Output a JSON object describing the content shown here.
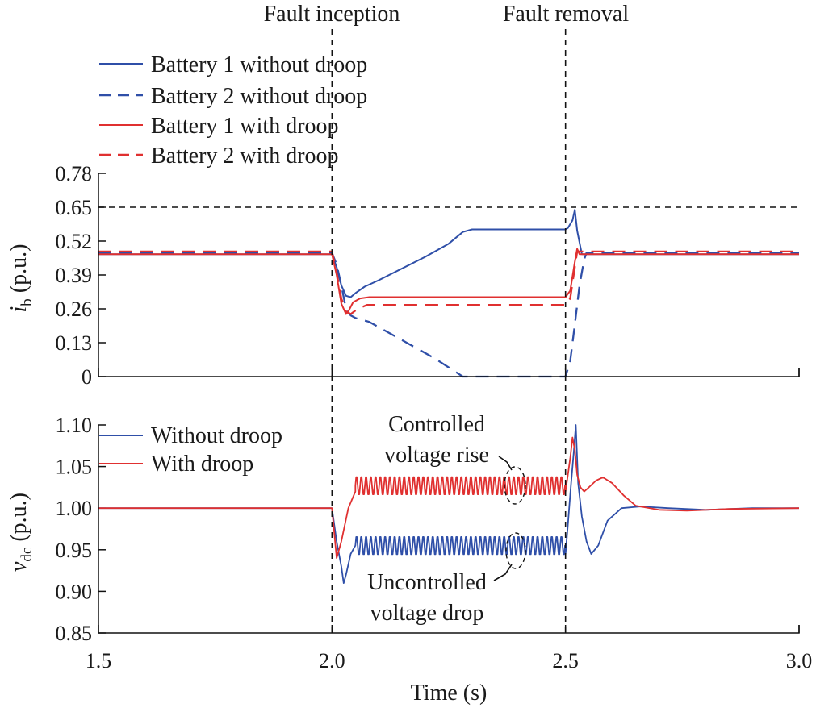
{
  "chart_data": [
    {
      "type": "line",
      "ylabel_main": "i",
      "ylabel_sub": "b",
      "ylabel_unit": " (p.u.)",
      "xlim": [
        1.5,
        3.0
      ],
      "ylim": [
        0,
        0.78
      ],
      "yticks": [
        "0",
        "0.13",
        "0.26",
        "0.39",
        "0.52",
        "0.65",
        "0.78"
      ],
      "reference_line_y": 0.65,
      "legend": [
        "Battery 1 without droop",
        "Battery 2 without droop",
        "Battery 1 with droop",
        "Battery 2 with droop"
      ],
      "legend_location": "top-left",
      "series": [
        {
          "name": "Battery 1 without droop",
          "color": "#2f4fa8",
          "dash": false,
          "x": [
            1.5,
            2.0,
            2.01,
            2.02,
            2.03,
            2.04,
            2.05,
            2.07,
            2.1,
            2.2,
            2.25,
            2.28,
            2.3,
            2.4,
            2.5,
            2.505,
            2.515,
            2.52,
            2.525,
            2.535,
            2.55,
            3.0
          ],
          "y": [
            0.47,
            0.47,
            0.42,
            0.35,
            0.31,
            0.305,
            0.32,
            0.345,
            0.37,
            0.46,
            0.51,
            0.555,
            0.565,
            0.565,
            0.565,
            0.57,
            0.6,
            0.64,
            0.56,
            0.47,
            0.47,
            0.47
          ]
        },
        {
          "name": "Battery 2 without droop",
          "color": "#2f4fa8",
          "dash": true,
          "x": [
            1.5,
            2.0,
            2.01,
            2.02,
            2.03,
            2.04,
            2.05,
            2.08,
            2.15,
            2.22,
            2.28,
            2.3,
            2.4,
            2.5,
            2.51,
            2.52,
            2.53,
            2.54,
            2.545,
            3.0
          ],
          "y": [
            0.475,
            0.475,
            0.43,
            0.35,
            0.26,
            0.235,
            0.225,
            0.21,
            0.14,
            0.07,
            0.0,
            0.0,
            0.0,
            0.0,
            0.06,
            0.2,
            0.35,
            0.45,
            0.475,
            0.475
          ]
        },
        {
          "name": "Battery 1 with droop",
          "color": "#e03030",
          "dash": false,
          "x": [
            1.5,
            2.0,
            2.01,
            2.02,
            2.03,
            2.035,
            2.045,
            2.06,
            2.08,
            2.1,
            2.3,
            2.4,
            2.5,
            2.51,
            2.52,
            2.525,
            2.53,
            2.54,
            2.56,
            3.0
          ],
          "y": [
            0.47,
            0.47,
            0.39,
            0.28,
            0.24,
            0.25,
            0.285,
            0.3,
            0.305,
            0.305,
            0.305,
            0.305,
            0.305,
            0.33,
            0.44,
            0.49,
            0.47,
            0.47,
            0.47,
            0.47
          ]
        },
        {
          "name": "Battery 2 with droop",
          "color": "#e03030",
          "dash": true,
          "x": [
            1.5,
            2.0,
            2.01,
            2.02,
            2.03,
            2.04,
            2.055,
            2.075,
            2.1,
            2.3,
            2.5,
            2.51,
            2.52,
            2.525,
            2.54,
            3.0
          ],
          "y": [
            0.48,
            0.48,
            0.4,
            0.3,
            0.25,
            0.24,
            0.26,
            0.275,
            0.275,
            0.275,
            0.275,
            0.3,
            0.42,
            0.48,
            0.48,
            0.48
          ]
        }
      ]
    },
    {
      "type": "line",
      "ylabel_main": "v",
      "ylabel_sub": "dc",
      "ylabel_unit": " (p.u.)",
      "xlabel": "Time (s)",
      "xlim": [
        1.5,
        3.0
      ],
      "ylim": [
        0.85,
        1.1
      ],
      "xticks": [
        "1.5",
        "2.0",
        "2.5",
        "3.0"
      ],
      "yticks": [
        "0.85",
        "0.90",
        "0.95",
        "1.00",
        "1.05",
        "1.10"
      ],
      "legend": [
        "Without droop",
        "With droop"
      ],
      "legend_location": "top-left",
      "series": [
        {
          "name": "Without droop",
          "color": "#2f4fa8",
          "steady_x": [
            1.5,
            2.0
          ],
          "steady_y": 1.0,
          "transient_x": [
            2.0,
            2.01,
            2.02,
            2.025,
            2.03,
            2.04,
            2.05
          ],
          "transient_y": [
            1.0,
            0.96,
            0.93,
            0.91,
            0.92,
            0.945,
            0.955
          ],
          "oscillation": {
            "x_start": 2.05,
            "x_end": 2.5,
            "center": 0.955,
            "amplitude": 0.012,
            "period": 0.0102
          },
          "post_fault_x": [
            2.5,
            2.505,
            2.512,
            2.518,
            2.522,
            2.527,
            2.535,
            2.545,
            2.555,
            2.57,
            2.59,
            2.62,
            2.66,
            2.72,
            2.8,
            2.9,
            3.0
          ],
          "post_fault_y": [
            0.945,
            0.98,
            1.03,
            1.07,
            1.1,
            1.03,
            0.99,
            0.96,
            0.945,
            0.955,
            0.985,
            1.0,
            1.002,
            1.0,
            0.998,
            1.0,
            1.0
          ]
        },
        {
          "name": "With droop",
          "color": "#e03030",
          "steady_x": [
            1.5,
            2.0
          ],
          "steady_y": 1.0,
          "transient_x": [
            2.0,
            2.005,
            2.01,
            2.02,
            2.035,
            2.05
          ],
          "transient_y": [
            1.0,
            0.97,
            0.94,
            0.96,
            1.0,
            1.02
          ],
          "oscillation": {
            "x_start": 2.05,
            "x_end": 2.5,
            "center": 1.027,
            "amplitude": 0.012,
            "period": 0.0102
          },
          "post_fault_x": [
            2.5,
            2.505,
            2.51,
            2.515,
            2.52,
            2.525,
            2.532,
            2.54,
            2.55,
            2.565,
            2.58,
            2.6,
            2.625,
            2.65,
            2.7,
            2.76,
            2.85,
            3.0
          ],
          "post_fault_y": [
            1.02,
            1.04,
            1.06,
            1.085,
            1.07,
            1.04,
            1.025,
            1.02,
            1.025,
            1.033,
            1.037,
            1.03,
            1.015,
            1.003,
            0.998,
            0.997,
            0.999,
            1.0
          ]
        }
      ],
      "annotations": [
        {
          "lines": [
            "Controlled",
            "voltage rise"
          ],
          "target_x": 2.45,
          "target_y": 1.027
        },
        {
          "lines": [
            "Uncontrolled",
            "voltage drop"
          ],
          "target_x": 2.45,
          "target_y": 0.955
        }
      ]
    }
  ],
  "events": [
    {
      "label": "Fault inception",
      "x": 2.0
    },
    {
      "label": "Fault removal",
      "x": 2.5
    }
  ]
}
